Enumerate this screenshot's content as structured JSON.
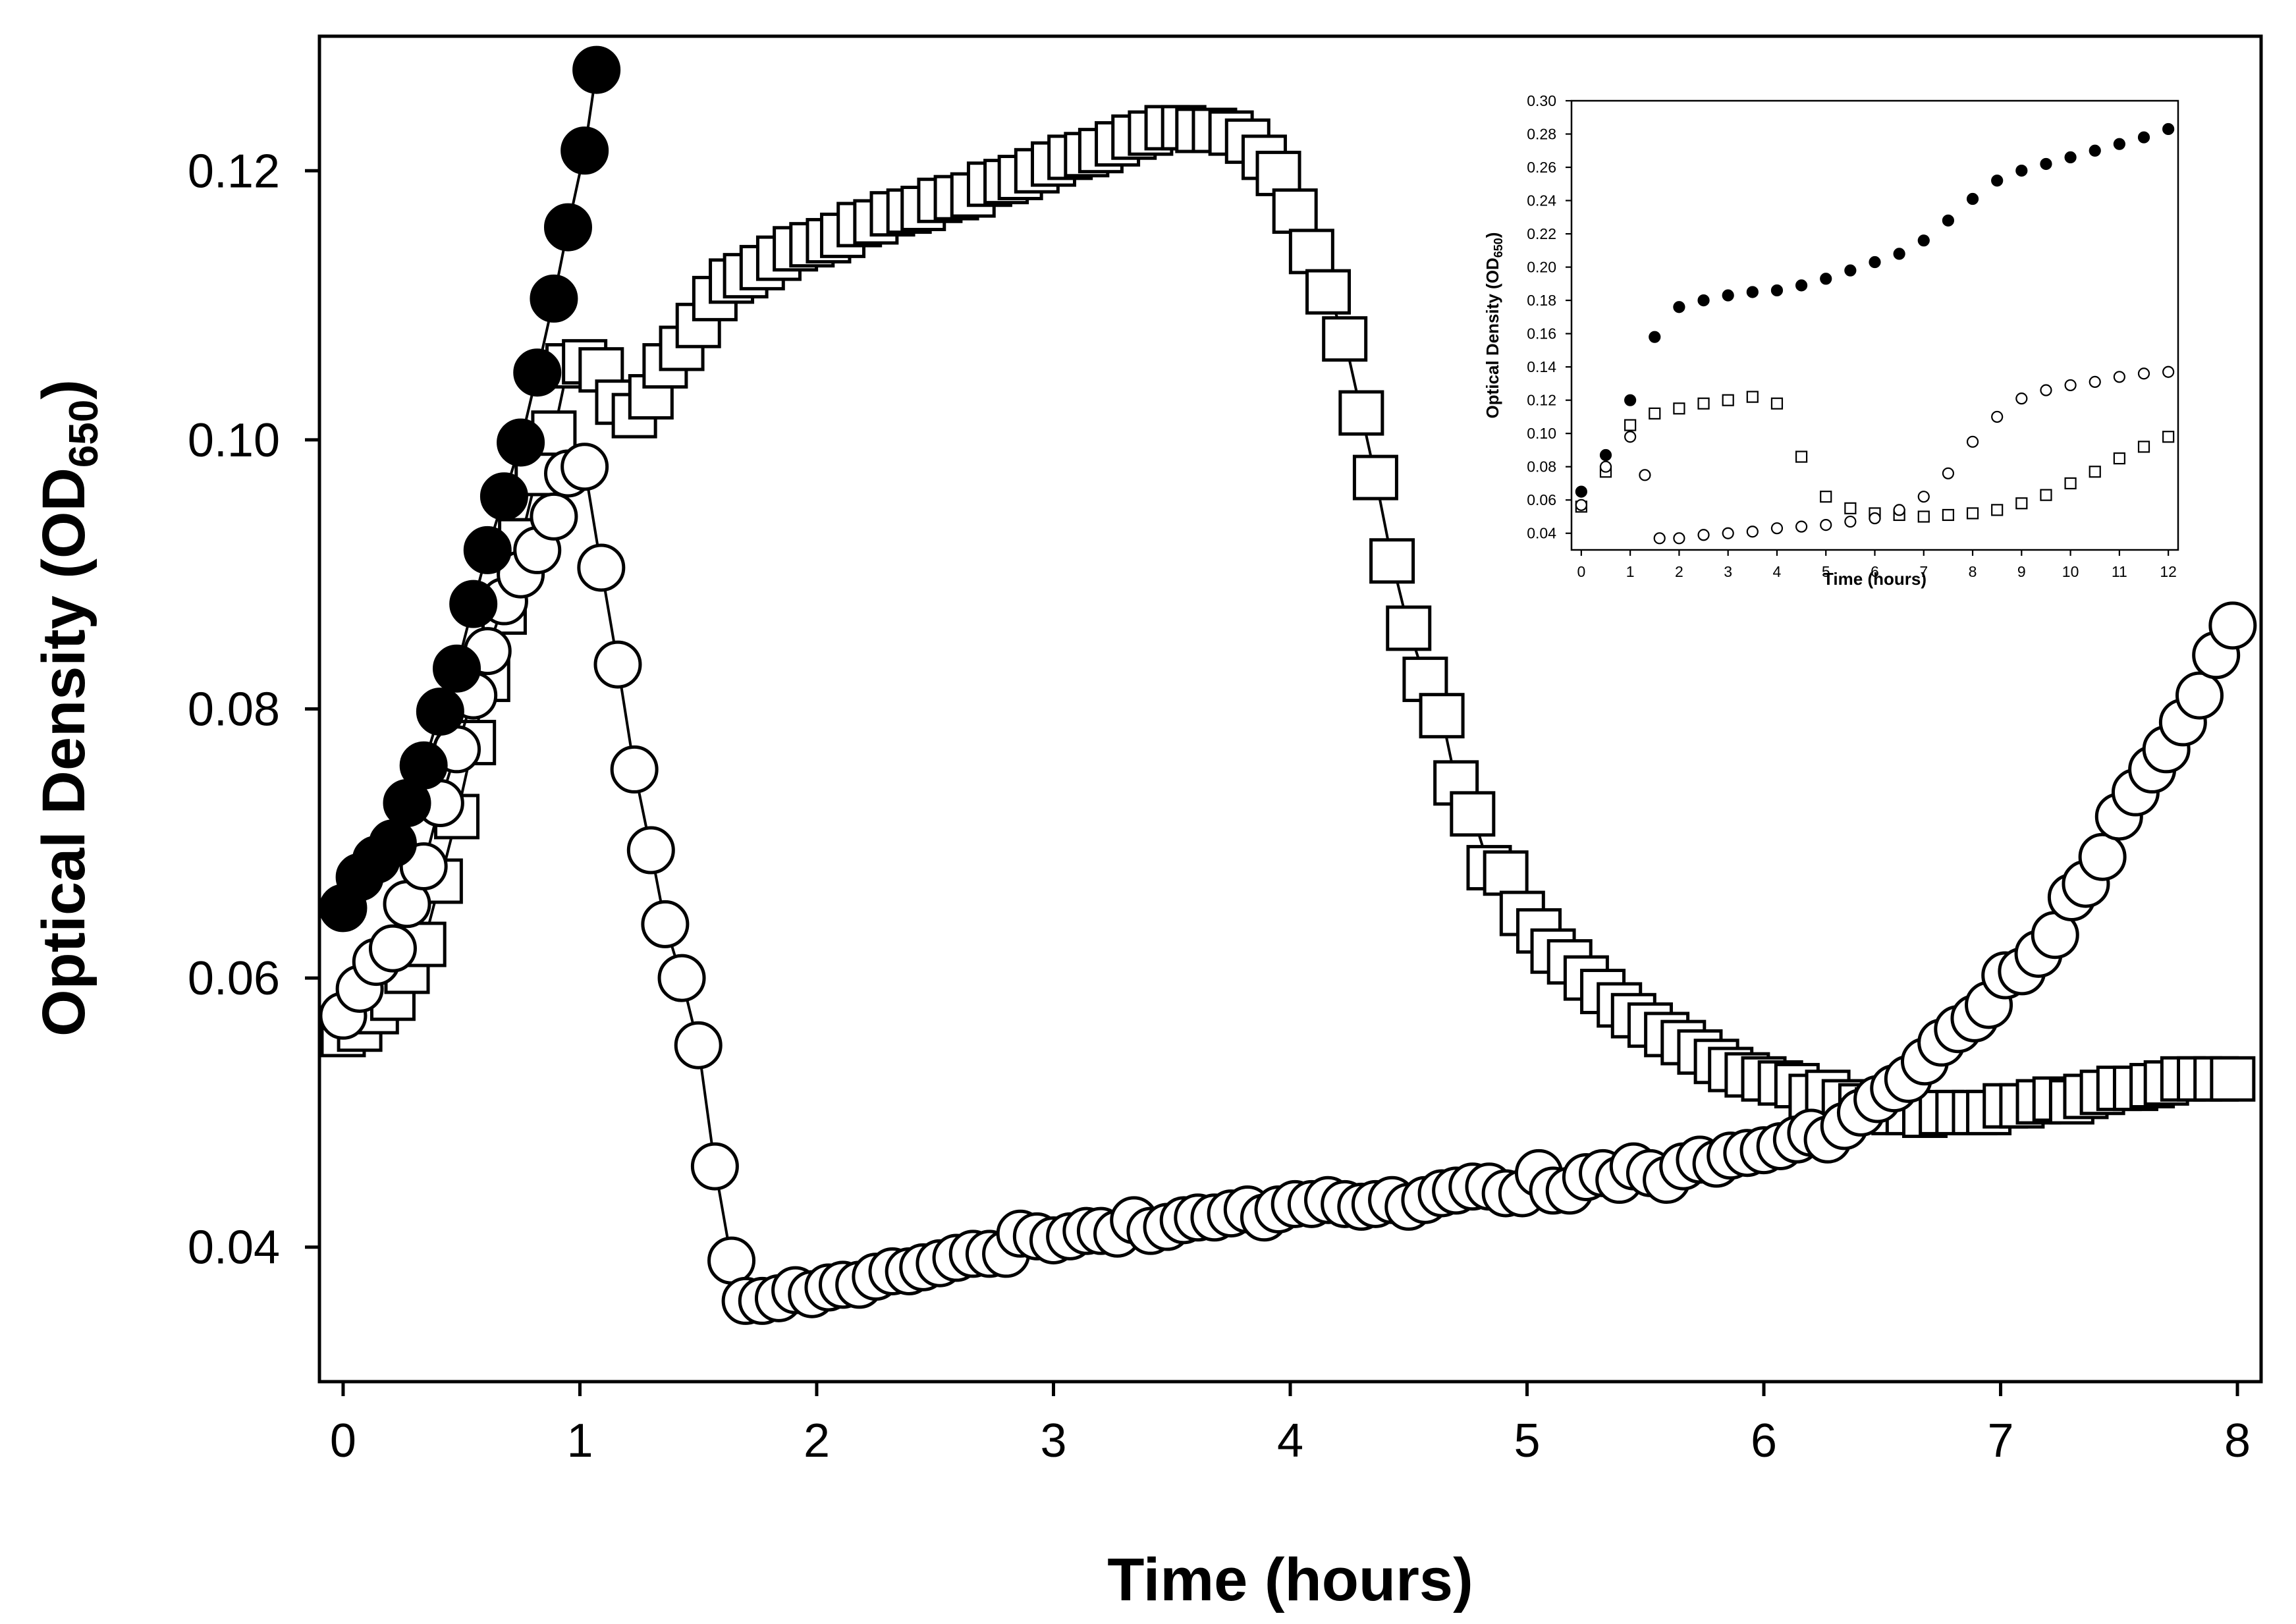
{
  "chart_data": [
    {
      "id": "main",
      "type": "scatter",
      "title": "",
      "xlabel": "Time (hours)",
      "ylabel_main": "Optical Density (OD",
      "ylabel_sub": "650",
      "ylabel_close": ")",
      "xlim": [
        -0.1,
        8.1
      ],
      "ylim": [
        0.03,
        0.13
      ],
      "xticks": [
        0,
        1,
        2,
        3,
        4,
        5,
        6,
        7,
        8
      ],
      "xtick_labels": [
        "0",
        "1",
        "2",
        "3",
        "4",
        "5",
        "6",
        "7",
        "8"
      ],
      "yticks": [
        0.04,
        0.06,
        0.08,
        0.1,
        0.12
      ],
      "ytick_labels": [
        "0.04",
        "0.06",
        "0.08",
        "0.10",
        "0.12"
      ],
      "grid": false,
      "series": [
        {
          "name": "filled circles",
          "marker": "circle-filled",
          "color": "#000000",
          "x": [
            0.0,
            0.07,
            0.14,
            0.21,
            0.27,
            0.34,
            0.41,
            0.48,
            0.55,
            0.61,
            0.68,
            0.75,
            0.82,
            0.89,
            0.95,
            1.02,
            1.07
          ],
          "y": [
            0.0652,
            0.0675,
            0.0688,
            0.07,
            0.073,
            0.0758,
            0.0798,
            0.083,
            0.0878,
            0.0918,
            0.0958,
            0.0998,
            0.105,
            0.1105,
            0.1158,
            0.1215,
            0.1275
          ]
        },
        {
          "name": "open squares",
          "marker": "square-open",
          "color": "#000000",
          "x": [
            0.0,
            0.07,
            0.14,
            0.21,
            0.27,
            0.34,
            0.41,
            0.48,
            0.55,
            0.61,
            0.68,
            0.75,
            0.82,
            0.89,
            0.95,
            1.02,
            1.09,
            1.16,
            1.23,
            1.3,
            1.36,
            1.43,
            1.5,
            1.57,
            1.64,
            1.7,
            1.77,
            1.84,
            1.91,
            1.98,
            2.05,
            2.11,
            2.18,
            2.25,
            2.32,
            2.39,
            2.45,
            2.52,
            2.59,
            2.66,
            2.73,
            2.8,
            2.86,
            2.93,
            3.0,
            3.07,
            3.14,
            3.2,
            3.27,
            3.34,
            3.41,
            3.48,
            3.55,
            3.61,
            3.68,
            3.75,
            3.82,
            3.89,
            3.95,
            4.02,
            4.09,
            4.16,
            4.23,
            4.3,
            4.36,
            4.43,
            4.5,
            4.57,
            4.64,
            4.7,
            4.77,
            4.84,
            4.91,
            4.98,
            5.05,
            5.11,
            5.18,
            5.25,
            5.32,
            5.39,
            5.45,
            5.52,
            5.59,
            5.66,
            5.73,
            5.8,
            5.86,
            5.93,
            6.0,
            6.07,
            6.14,
            6.2,
            6.27,
            6.34,
            6.41,
            6.48,
            6.55,
            6.61,
            6.68,
            6.75,
            6.82,
            6.89,
            6.95,
            7.02,
            7.09,
            7.16,
            7.23,
            7.3,
            7.36,
            7.43,
            7.5,
            7.57,
            7.64,
            7.7,
            7.77,
            7.84,
            7.91,
            7.98
          ],
          "y": [
            0.0558,
            0.0562,
            0.0575,
            0.0585,
            0.0605,
            0.0625,
            0.0672,
            0.072,
            0.0775,
            0.0822,
            0.0872,
            0.0925,
            0.0975,
            0.1005,
            0.1055,
            0.1058,
            0.1052,
            0.1028,
            0.1018,
            0.1032,
            0.1055,
            0.1068,
            0.1085,
            0.1105,
            0.1118,
            0.1122,
            0.1128,
            0.1135,
            0.1142,
            0.1145,
            0.1148,
            0.1152,
            0.116,
            0.1162,
            0.1168,
            0.117,
            0.1172,
            0.1178,
            0.118,
            0.1182,
            0.119,
            0.1192,
            0.1195,
            0.12,
            0.1205,
            0.121,
            0.1212,
            0.1215,
            0.122,
            0.1225,
            0.1228,
            0.1232,
            0.1232,
            0.123,
            0.123,
            0.1228,
            0.1222,
            0.121,
            0.1198,
            0.117,
            0.114,
            0.111,
            0.1075,
            0.102,
            0.0972,
            0.091,
            0.086,
            0.0822,
            0.0795,
            0.0745,
            0.0722,
            0.0682,
            0.0678,
            0.0648,
            0.0635,
            0.062,
            0.0612,
            0.06,
            0.059,
            0.058,
            0.0572,
            0.0565,
            0.0558,
            0.0552,
            0.0545,
            0.0538,
            0.0532,
            0.0528,
            0.0525,
            0.0522,
            0.052,
            0.0512,
            0.0515,
            0.0508,
            0.0505,
            0.0502,
            0.05,
            0.05,
            0.0498,
            0.05,
            0.05,
            0.05,
            0.05,
            0.0505,
            0.0505,
            0.0508,
            0.051,
            0.0508,
            0.0512,
            0.0515,
            0.0518,
            0.0518,
            0.052,
            0.0522,
            0.0525,
            0.0525,
            0.0525,
            0.0525
          ]
        },
        {
          "name": "open circles",
          "marker": "circle-open",
          "color": "#000000",
          "x": [
            0.0,
            0.07,
            0.14,
            0.21,
            0.27,
            0.34,
            0.41,
            0.48,
            0.55,
            0.61,
            0.68,
            0.75,
            0.82,
            0.89,
            0.95,
            1.02,
            1.09,
            1.16,
            1.23,
            1.3,
            1.36,
            1.43,
            1.5,
            1.57,
            1.64,
            1.7,
            1.77,
            1.84,
            1.91,
            1.98,
            2.05,
            2.11,
            2.18,
            2.25,
            2.32,
            2.39,
            2.45,
            2.52,
            2.59,
            2.66,
            2.73,
            2.8,
            2.86,
            2.93,
            3.0,
            3.07,
            3.14,
            3.2,
            3.27,
            3.34,
            3.41,
            3.48,
            3.55,
            3.61,
            3.68,
            3.75,
            3.82,
            3.89,
            3.95,
            4.02,
            4.09,
            4.16,
            4.23,
            4.3,
            4.36,
            4.43,
            4.5,
            4.57,
            4.64,
            4.7,
            4.77,
            4.84,
            4.91,
            4.98,
            5.05,
            5.11,
            5.18,
            5.25,
            5.32,
            5.39,
            5.45,
            5.52,
            5.59,
            5.66,
            5.73,
            5.8,
            5.86,
            5.93,
            6.0,
            6.07,
            6.14,
            6.2,
            6.27,
            6.34,
            6.41,
            6.48,
            6.55,
            6.61,
            6.68,
            6.75,
            6.82,
            6.89,
            6.95,
            7.02,
            7.09,
            7.16,
            7.23,
            7.3,
            7.36,
            7.43,
            7.5,
            7.57,
            7.64,
            7.7,
            7.77,
            7.84,
            7.91,
            7.98
          ],
          "y": [
            0.0572,
            0.0592,
            0.0612,
            0.0622,
            0.0655,
            0.0683,
            0.073,
            0.077,
            0.081,
            0.0843,
            0.088,
            0.09,
            0.0918,
            0.0943,
            0.0975,
            0.098,
            0.0905,
            0.0833,
            0.0755,
            0.0695,
            0.064,
            0.06,
            0.055,
            0.046,
            0.039,
            0.036,
            0.036,
            0.0362,
            0.0368,
            0.0365,
            0.037,
            0.0372,
            0.0372,
            0.0378,
            0.0382,
            0.0382,
            0.0385,
            0.0388,
            0.0392,
            0.0395,
            0.0395,
            0.0395,
            0.041,
            0.0408,
            0.0405,
            0.0408,
            0.0412,
            0.0412,
            0.041,
            0.042,
            0.0412,
            0.0415,
            0.042,
            0.0422,
            0.0422,
            0.0425,
            0.0428,
            0.0422,
            0.0428,
            0.0432,
            0.0432,
            0.0435,
            0.0432,
            0.043,
            0.0432,
            0.0435,
            0.043,
            0.0435,
            0.044,
            0.0442,
            0.0445,
            0.0445,
            0.044,
            0.044,
            0.0455,
            0.0442,
            0.0442,
            0.0452,
            0.0455,
            0.045,
            0.046,
            0.0455,
            0.045,
            0.046,
            0.0465,
            0.0462,
            0.0468,
            0.047,
            0.0472,
            0.0475,
            0.048,
            0.0485,
            0.048,
            0.049,
            0.05,
            0.051,
            0.0518,
            0.0525,
            0.0538,
            0.0552,
            0.0562,
            0.057,
            0.058,
            0.0602,
            0.0605,
            0.0618,
            0.0632,
            0.066,
            0.067,
            0.069,
            0.072,
            0.0738,
            0.0755,
            0.077,
            0.079,
            0.081,
            0.084,
            0.0862
          ]
        }
      ]
    },
    {
      "id": "inset",
      "type": "scatter",
      "title": "",
      "xlabel": "Time (hours)",
      "ylabel_main": "Optical Density (OD",
      "ylabel_sub": "650",
      "ylabel_close": ")",
      "xlim": [
        -0.2,
        12.2
      ],
      "ylim": [
        0.03,
        0.3
      ],
      "xticks": [
        0,
        1,
        2,
        3,
        4,
        5,
        6,
        7,
        8,
        9,
        10,
        11,
        12
      ],
      "xtick_labels": [
        "0",
        "1",
        "2",
        "3",
        "4",
        "5",
        "6",
        "7",
        "8",
        "9",
        "10",
        "11",
        "12"
      ],
      "yticks": [
        0.04,
        0.06,
        0.08,
        0.1,
        0.12,
        0.14,
        0.16,
        0.18,
        0.2,
        0.22,
        0.24,
        0.26,
        0.28,
        0.3
      ],
      "ytick_labels": [
        "0.04",
        "0.06",
        "0.08",
        "0.10",
        "0.12",
        "0.14",
        "0.16",
        "0.18",
        "0.20",
        "0.22",
        "0.24",
        "0.26",
        "0.28",
        "0.30"
      ],
      "grid": false,
      "series": [
        {
          "name": "filled circles",
          "marker": "circle-filled",
          "color": "#000000",
          "x": [
            0,
            0.5,
            1.0,
            1.5,
            2.0,
            2.5,
            3.0,
            3.5,
            4.0,
            4.5,
            5.0,
            5.5,
            6.0,
            6.5,
            7.0,
            7.5,
            8.0,
            8.5,
            9.0,
            9.5,
            10.0,
            10.5,
            11.0,
            11.5,
            12.0
          ],
          "y": [
            0.065,
            0.087,
            0.12,
            0.158,
            0.176,
            0.18,
            0.183,
            0.185,
            0.186,
            0.189,
            0.193,
            0.198,
            0.203,
            0.208,
            0.216,
            0.228,
            0.241,
            0.252,
            0.258,
            0.262,
            0.266,
            0.27,
            0.274,
            0.278,
            0.283
          ]
        },
        {
          "name": "open squares",
          "marker": "square-open",
          "color": "#000000",
          "x": [
            0,
            0.5,
            1.0,
            1.5,
            2.0,
            2.5,
            3.0,
            3.5,
            4.0,
            4.5,
            5.0,
            5.5,
            6.0,
            6.5,
            7.0,
            7.5,
            8.0,
            8.5,
            9.0,
            9.5,
            10.0,
            10.5,
            11.0,
            11.5,
            12.0
          ],
          "y": [
            0.056,
            0.077,
            0.105,
            0.112,
            0.115,
            0.118,
            0.12,
            0.122,
            0.118,
            0.086,
            0.062,
            0.055,
            0.052,
            0.051,
            0.05,
            0.051,
            0.052,
            0.054,
            0.058,
            0.063,
            0.07,
            0.077,
            0.085,
            0.092,
            0.098
          ]
        },
        {
          "name": "open circles",
          "marker": "circle-open",
          "color": "#000000",
          "x": [
            0,
            0.5,
            1.0,
            1.3,
            1.6,
            2.0,
            2.5,
            3.0,
            3.5,
            4.0,
            4.5,
            5.0,
            5.5,
            6.0,
            6.5,
            7.0,
            7.5,
            8.0,
            8.5,
            9.0,
            9.5,
            10.0,
            10.5,
            11.0,
            11.5,
            12.0
          ],
          "y": [
            0.057,
            0.08,
            0.098,
            0.075,
            0.037,
            0.037,
            0.039,
            0.04,
            0.041,
            0.043,
            0.044,
            0.045,
            0.047,
            0.049,
            0.054,
            0.062,
            0.076,
            0.095,
            0.11,
            0.121,
            0.126,
            0.129,
            0.131,
            0.134,
            0.136,
            0.137
          ]
        }
      ]
    }
  ]
}
